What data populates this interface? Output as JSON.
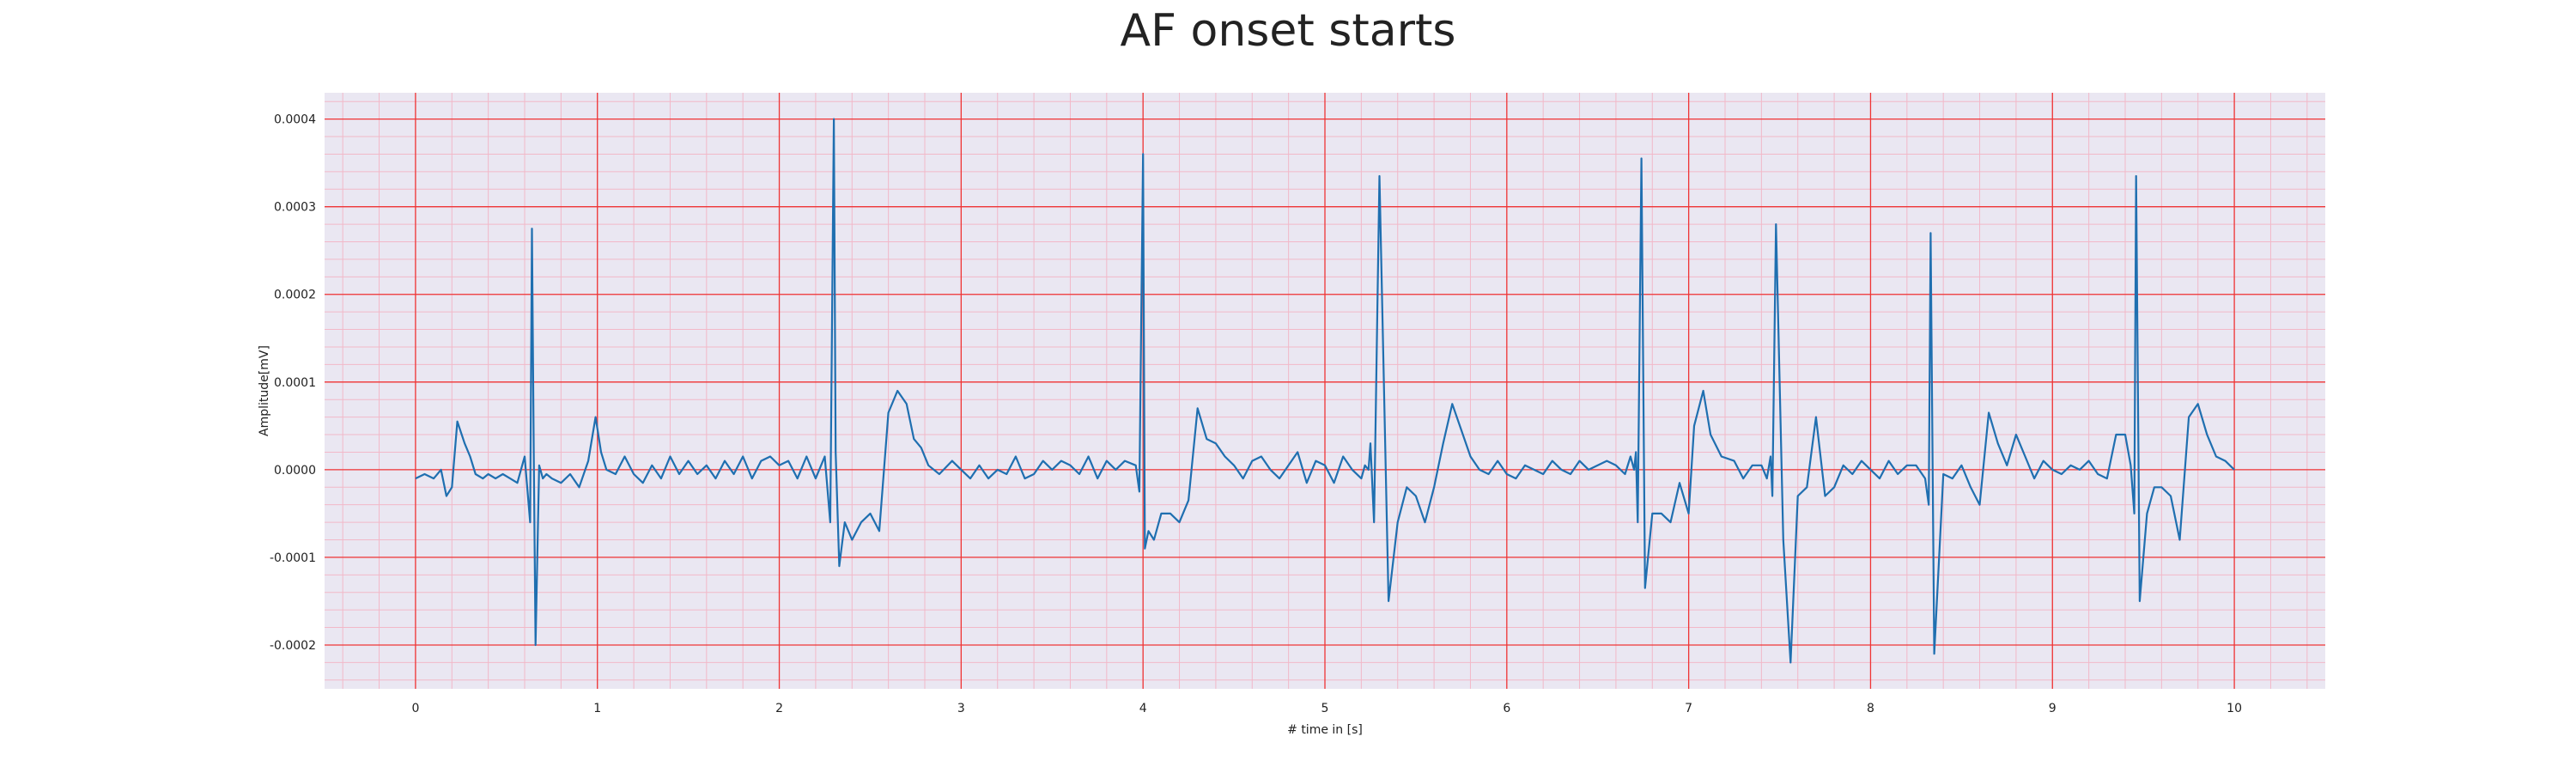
{
  "chart_data": {
    "type": "line",
    "title": "AF onset starts",
    "xlabel": "# time in [s]",
    "ylabel": "Amplitude[mV]",
    "xlim": [
      -0.5,
      10.5
    ],
    "ylim": [
      -0.00025,
      0.00043
    ],
    "x_ticks": [
      "0",
      "1",
      "2",
      "3",
      "4",
      "5",
      "6",
      "7",
      "8",
      "9",
      "10"
    ],
    "y_ticks": [
      "-0.0002",
      "-0.0001",
      "0.0000",
      "0.0001",
      "0.0002",
      "0.0003",
      "0.0004"
    ],
    "grid": true,
    "colors": {
      "line": "#1f6fb0",
      "background": "#eae7f2",
      "major_grid": "#ef3535",
      "minor_grid": "#f2b8c8"
    },
    "series": [
      {
        "x": [
          0.0,
          0.05,
          0.1,
          0.14,
          0.17,
          0.2,
          0.23,
          0.27,
          0.3,
          0.33,
          0.37,
          0.4,
          0.44,
          0.48,
          0.52,
          0.56,
          0.6,
          0.63,
          0.64,
          0.65,
          0.66,
          0.68,
          0.7,
          0.72,
          0.75,
          0.8,
          0.85,
          0.9,
          0.95,
          0.99,
          1.02,
          1.05,
          1.1,
          1.15,
          1.2,
          1.25,
          1.3,
          1.35,
          1.4,
          1.45,
          1.5,
          1.55,
          1.6,
          1.65,
          1.7,
          1.75,
          1.8,
          1.85,
          1.9,
          1.95,
          2.0,
          2.05,
          2.1,
          2.15,
          2.2,
          2.25,
          2.28,
          2.3,
          2.31,
          2.33,
          2.36,
          2.4,
          2.45,
          2.5,
          2.55,
          2.6,
          2.65,
          2.7,
          2.74,
          2.78,
          2.82,
          2.88,
          2.95,
          3.0,
          3.05,
          3.1,
          3.15,
          3.2,
          3.25,
          3.3,
          3.35,
          3.4,
          3.45,
          3.5,
          3.55,
          3.6,
          3.65,
          3.7,
          3.75,
          3.8,
          3.85,
          3.9,
          3.96,
          3.98,
          4.0,
          4.01,
          4.03,
          4.06,
          4.1,
          4.15,
          4.2,
          4.25,
          4.3,
          4.35,
          4.4,
          4.45,
          4.5,
          4.55,
          4.6,
          4.65,
          4.7,
          4.75,
          4.8,
          4.85,
          4.9,
          4.95,
          5.0,
          5.05,
          5.1,
          5.15,
          5.2,
          5.22,
          5.24,
          5.25,
          5.27,
          5.3,
          5.35,
          5.4,
          5.45,
          5.5,
          5.55,
          5.6,
          5.65,
          5.7,
          5.75,
          5.8,
          5.85,
          5.9,
          5.95,
          6.0,
          6.05,
          6.1,
          6.15,
          6.2,
          6.25,
          6.3,
          6.35,
          6.4,
          6.45,
          6.5,
          6.55,
          6.6,
          6.65,
          6.68,
          6.7,
          6.71,
          6.72,
          6.74,
          6.76,
          6.8,
          6.85,
          6.9,
          6.95,
          7.0,
          7.03,
          7.08,
          7.12,
          7.18,
          7.25,
          7.3,
          7.35,
          7.4,
          7.43,
          7.45,
          7.46,
          7.48,
          7.52,
          7.56,
          7.6,
          7.65,
          7.7,
          7.75,
          7.8,
          7.85,
          7.9,
          7.95,
          8.0,
          8.05,
          8.1,
          8.15,
          8.2,
          8.25,
          8.3,
          8.32,
          8.33,
          8.35,
          8.4,
          8.45,
          8.5,
          8.55,
          8.6,
          8.65,
          8.7,
          8.75,
          8.8,
          8.85,
          8.9,
          8.95,
          9.0,
          9.05,
          9.1,
          9.15,
          9.2,
          9.25,
          9.3,
          9.35,
          9.4,
          9.43,
          9.45,
          9.46,
          9.48,
          9.52,
          9.56,
          9.6,
          9.65,
          9.7,
          9.75,
          9.8,
          9.85,
          9.9,
          9.95,
          10.0
        ],
        "y": [
          -1e-05,
          -5e-06,
          -1e-05,
          0.0,
          -3e-05,
          -2e-05,
          5.5e-05,
          3e-05,
          1.5e-05,
          -5e-06,
          -1e-05,
          -5e-06,
          -1e-05,
          -5e-06,
          -1e-05,
          -1.5e-05,
          1.5e-05,
          -6e-05,
          0.000275,
          2e-05,
          -0.0002,
          5e-06,
          -1e-05,
          -5e-06,
          -1e-05,
          -1.5e-05,
          -5e-06,
          -2e-05,
          1e-05,
          6e-05,
          2e-05,
          0.0,
          -5e-06,
          1.5e-05,
          -5e-06,
          -1.5e-05,
          5e-06,
          -1e-05,
          1.5e-05,
          -5e-06,
          1e-05,
          -5e-06,
          5e-06,
          -1e-05,
          1e-05,
          -5e-06,
          1.5e-05,
          -1e-05,
          1e-05,
          1.5e-05,
          5e-06,
          1e-05,
          -1e-05,
          1.5e-05,
          -1e-05,
          1.5e-05,
          -6e-05,
          0.0004,
          2e-05,
          -0.00011,
          -6e-05,
          -8e-05,
          -6e-05,
          -5e-05,
          -7e-05,
          6.5e-05,
          9e-05,
          7.5e-05,
          3.5e-05,
          2.5e-05,
          5e-06,
          -5e-06,
          1e-05,
          0.0,
          -1e-05,
          5e-06,
          -1e-05,
          0.0,
          -5e-06,
          1.5e-05,
          -1e-05,
          -5e-06,
          1e-05,
          0.0,
          1e-05,
          5e-06,
          -5e-06,
          1.5e-05,
          -1e-05,
          1e-05,
          0.0,
          1e-05,
          5e-06,
          -2.5e-05,
          0.00036,
          -9e-05,
          -7e-05,
          -8e-05,
          -5e-05,
          -5e-05,
          -6e-05,
          -3.5e-05,
          7e-05,
          3.5e-05,
          3e-05,
          1.5e-05,
          5e-06,
          -1e-05,
          1e-05,
          1.5e-05,
          0.0,
          -1e-05,
          5e-06,
          2e-05,
          -1.5e-05,
          1e-05,
          5e-06,
          -1.5e-05,
          1.5e-05,
          0.0,
          -1e-05,
          5e-06,
          0.0,
          3e-05,
          -6e-05,
          0.000335,
          -0.00015,
          -6e-05,
          -2e-05,
          -3e-05,
          -6e-05,
          -2e-05,
          3e-05,
          7.5e-05,
          4.5e-05,
          1.5e-05,
          0.0,
          -5e-06,
          1e-05,
          -5e-06,
          -1e-05,
          5e-06,
          0.0,
          -5e-06,
          1e-05,
          0.0,
          -5e-06,
          1e-05,
          0.0,
          5e-06,
          1e-05,
          5e-06,
          -5e-06,
          1.5e-05,
          0.0,
          2e-05,
          -6e-05,
          0.000355,
          -0.000135,
          -5e-05,
          -5e-05,
          -6e-05,
          -1.5e-05,
          -5e-05,
          5e-05,
          9e-05,
          4e-05,
          1.5e-05,
          1e-05,
          -1e-05,
          5e-06,
          5e-06,
          -1e-05,
          1.5e-05,
          -3e-05,
          0.00028,
          -8e-05,
          -0.00022,
          -3e-05,
          -2e-05,
          6e-05,
          -3e-05,
          -2e-05,
          5e-06,
          -5e-06,
          1e-05,
          0.0,
          -1e-05,
          1e-05,
          -5e-06,
          5e-06,
          5e-06,
          -1e-05,
          -4e-05,
          0.00027,
          -0.00021,
          -5e-06,
          -1e-05,
          5e-06,
          -2e-05,
          -4e-05,
          6.5e-05,
          3e-05,
          5e-06,
          4e-05,
          1.5e-05,
          -1e-05,
          1e-05,
          0.0,
          -5e-06,
          5e-06,
          0.0,
          1e-05,
          -5e-06,
          -1e-05,
          4e-05,
          4e-05,
          5e-06,
          -5e-05,
          0.000335,
          -0.00015,
          -5e-05,
          -2e-05,
          -2e-05,
          -3e-05,
          -8e-05,
          6e-05,
          7.5e-05,
          4e-05,
          1.5e-05,
          1e-05,
          0.0
        ]
      }
    ]
  }
}
